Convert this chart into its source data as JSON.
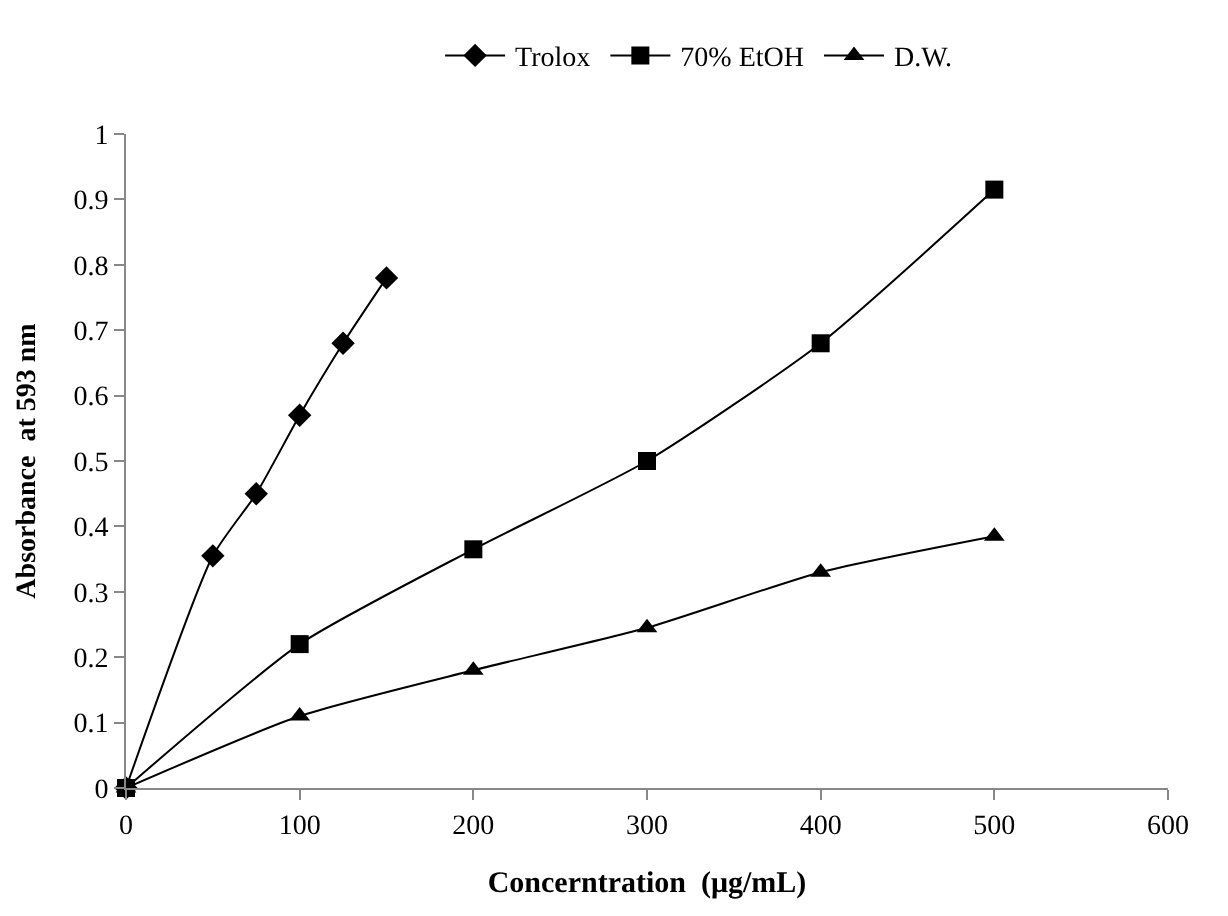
{
  "chart_data": {
    "type": "line",
    "xlabel": "Concerntration  (μg/mL)",
    "ylabel": "Absorbance  at 593 nm",
    "xlim": [
      0,
      600
    ],
    "xticks": [
      0,
      100,
      200,
      300,
      400,
      500,
      600
    ],
    "ylim": [
      0,
      1
    ],
    "yticks": [
      0,
      0.1,
      0.2,
      0.3,
      0.4,
      0.5,
      0.6,
      0.7,
      0.8,
      0.9,
      1
    ],
    "legend": "top",
    "line_style": "solid",
    "series": [
      {
        "name": "Trolox",
        "color": "#000000",
        "marker": "diamond",
        "x": [
          0,
          50,
          75,
          100,
          125,
          150
        ],
        "values": [
          0,
          0.355,
          0.45,
          0.57,
          0.68,
          0.78
        ]
      },
      {
        "name": "70% EtOH",
        "color": "#000000",
        "marker": "square",
        "x": [
          0,
          100,
          200,
          300,
          400,
          500
        ],
        "values": [
          0,
          0.22,
          0.365,
          0.5,
          0.68,
          0.915
        ]
      },
      {
        "name": "D.W.",
        "color": "#000000",
        "marker": "triangle",
        "x": [
          0,
          100,
          200,
          300,
          400,
          500
        ],
        "values": [
          0,
          0.11,
          0.18,
          0.245,
          0.33,
          0.385
        ]
      }
    ]
  }
}
